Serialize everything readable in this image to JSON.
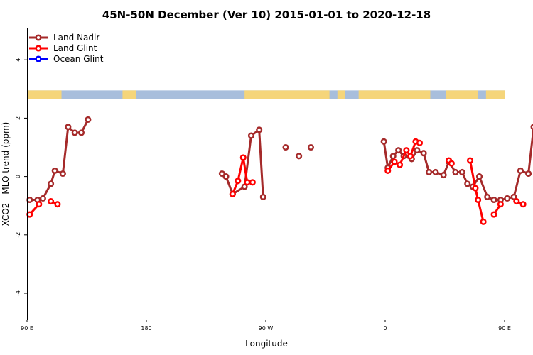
{
  "chart_data": {
    "type": "line",
    "title": "45N-50N December (Ver 10)   2015-01-01 to 2020-12-18",
    "xlabel": "Longitude",
    "ylabel": "XCO2 - MLO trend (ppm)",
    "xlim": [
      90,
      450
    ],
    "ylim": [
      -4.9,
      5.1
    ],
    "x_ticks": [
      {
        "value": 90,
        "label": "90 E"
      },
      {
        "value": 180,
        "label": "180"
      },
      {
        "value": 270,
        "label": "90 W"
      },
      {
        "value": 360,
        "label": "0"
      },
      {
        "value": 450,
        "label": "90 E"
      },
      {
        "value": 540,
        "label": "180"
      }
    ],
    "y_ticks": [
      {
        "value": -4,
        "label": "-4"
      },
      {
        "value": -2,
        "label": "-2"
      },
      {
        "value": 0,
        "label": "0"
      },
      {
        "value": 2,
        "label": "2"
      },
      {
        "value": 4,
        "label": "4"
      }
    ],
    "legend_position": "top-left",
    "land_band": {
      "y_range": [
        2.65,
        2.95
      ],
      "land_color": "#F5D57A",
      "ocean_color": "#A8BEDC"
    },
    "series": [
      {
        "name": "Land Nadir",
        "color": "#A52A2A",
        "segments": [
          [
            [
              92,
              -0.8
            ],
            [
              98,
              -0.8
            ],
            [
              102,
              -0.75
            ],
            [
              108,
              -0.25
            ],
            [
              111,
              0.2
            ],
            [
              117,
              0.1
            ],
            [
              121,
              1.7
            ],
            [
              126,
              1.5
            ],
            [
              131,
              1.5
            ],
            [
              136,
              1.95
            ]
          ],
          [
            [
              237,
              0.1
            ],
            [
              240,
              0.0
            ],
            [
              245,
              -0.6
            ],
            [
              254,
              -0.35
            ],
            [
              259,
              1.4
            ],
            [
              265,
              1.6
            ],
            [
              268,
              -0.7
            ]
          ],
          [
            [
              285,
              1.0
            ]
          ],
          [
            [
              295,
              0.7
            ]
          ],
          [
            [
              304,
              1.0
            ]
          ],
          [
            [
              359,
              1.2
            ],
            [
              362,
              0.3
            ],
            [
              366,
              0.7
            ],
            [
              370,
              0.9
            ],
            [
              374,
              0.7
            ],
            [
              380,
              0.6
            ],
            [
              384,
              0.9
            ],
            [
              389,
              0.8
            ],
            [
              393,
              0.15
            ],
            [
              398,
              0.15
            ],
            [
              404,
              0.05
            ],
            [
              408,
              0.5
            ],
            [
              413,
              0.15
            ],
            [
              418,
              0.15
            ],
            [
              422,
              -0.25
            ],
            [
              426,
              -0.35
            ],
            [
              431,
              0.0
            ],
            [
              437,
              -0.7
            ],
            [
              442,
              -0.8
            ],
            [
              447,
              -0.8
            ],
            [
              452,
              -0.75
            ],
            [
              457,
              -0.7
            ],
            [
              462,
              0.2
            ],
            [
              468,
              0.1
            ],
            [
              472,
              1.7
            ],
            [
              477,
              1.5
            ],
            [
              482,
              1.5
            ],
            [
              487,
              1.95
            ]
          ]
        ]
      },
      {
        "name": "Land Glint",
        "color": "#FF0000",
        "segments": [
          [
            [
              92,
              -1.3
            ],
            [
              99,
              -0.95
            ]
          ],
          [
            [
              108,
              -0.85
            ],
            [
              113,
              -0.95
            ]
          ],
          [
            [
              245,
              -0.6
            ],
            [
              249,
              -0.15
            ],
            [
              253,
              0.65
            ],
            [
              256,
              -0.2
            ],
            [
              260,
              -0.2
            ]
          ],
          [
            [
              362,
              0.2
            ],
            [
              367,
              0.5
            ],
            [
              371,
              0.4
            ],
            [
              376,
              0.9
            ],
            [
              379,
              0.7
            ],
            [
              383,
              1.2
            ],
            [
              386,
              1.15
            ]
          ],
          [
            [
              408,
              0.55
            ],
            [
              410,
              0.45
            ]
          ],
          [
            [
              424,
              0.55
            ],
            [
              428,
              -0.4
            ],
            [
              430,
              -0.8
            ],
            [
              434,
              -1.55
            ]
          ],
          [
            [
              442,
              -1.3
            ],
            [
              447,
              -0.95
            ]
          ],
          [
            [
              459,
              -0.85
            ],
            [
              464,
              -0.95
            ]
          ]
        ]
      },
      {
        "name": "Ocean Glint",
        "color": "#0000FF",
        "segments": []
      }
    ]
  }
}
